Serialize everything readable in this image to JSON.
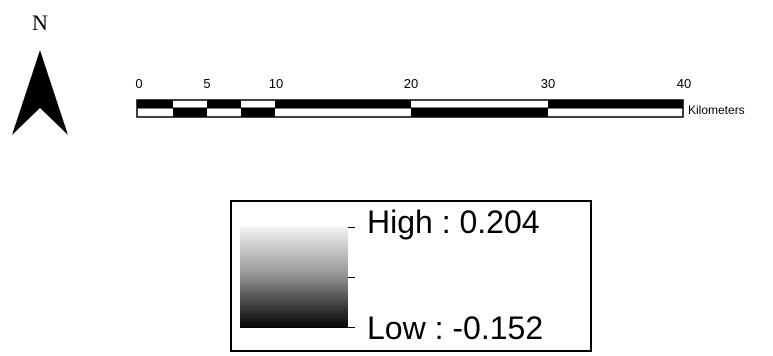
{
  "north_arrow": {
    "label": "N",
    "icon": "north-arrow-icon"
  },
  "scale_bar": {
    "ticks": [
      "0",
      "5",
      "10",
      "20",
      "30",
      "40"
    ],
    "unit": "Kilometers"
  },
  "legend": {
    "high_label": "High : 0.204",
    "low_label": "Low : -0.152",
    "ramp_colors": [
      "#f2f2f2",
      "#050505"
    ]
  }
}
